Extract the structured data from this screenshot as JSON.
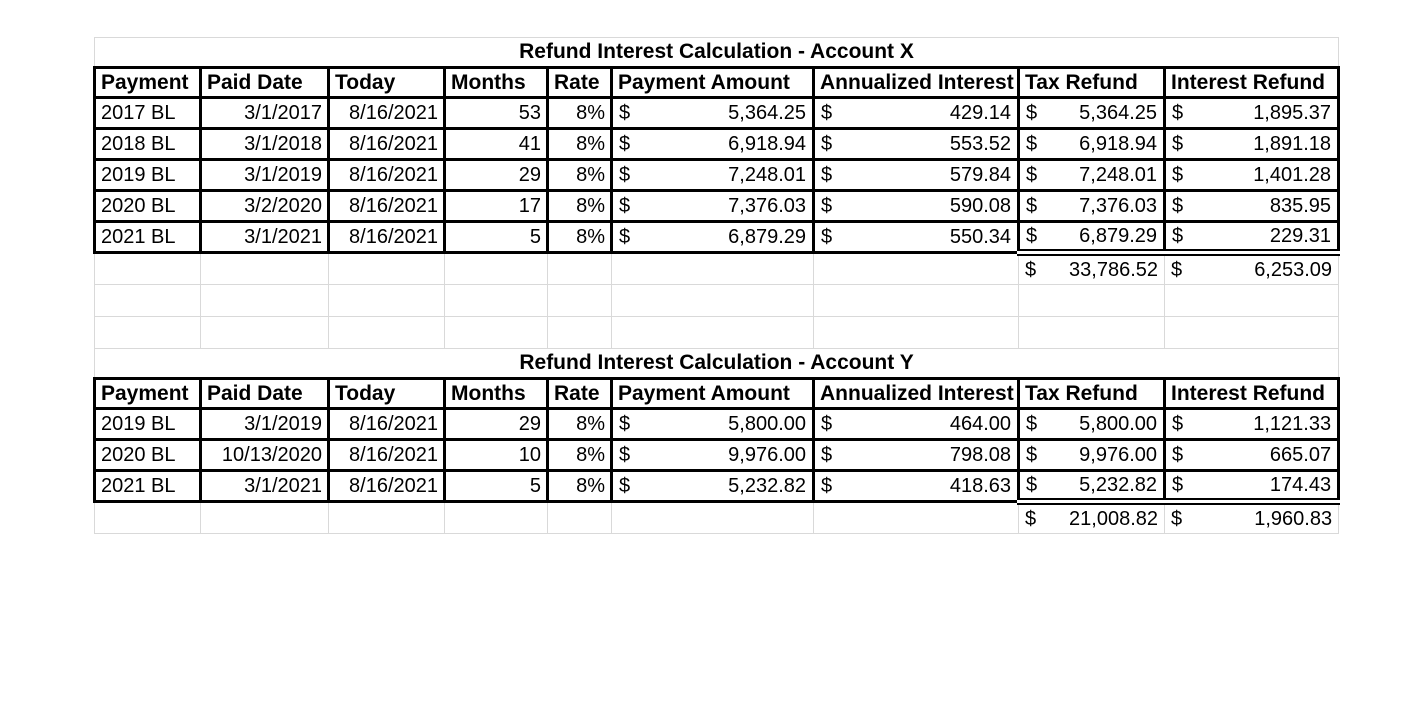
{
  "currency": "$",
  "styles": {
    "grid_line_color": "#d9d9d9",
    "table_border_color": "#000000",
    "text_color": "#000000",
    "background_color": "#ffffff"
  },
  "columns": [
    {
      "key": "payment",
      "type": "text"
    },
    {
      "key": "paid_date",
      "type": "right"
    },
    {
      "key": "today",
      "type": "right"
    },
    {
      "key": "months",
      "type": "right"
    },
    {
      "key": "rate",
      "type": "right"
    },
    {
      "key": "payment_amount",
      "type": "money"
    },
    {
      "key": "annualized_interest",
      "type": "money"
    },
    {
      "key": "tax_refund",
      "type": "money"
    },
    {
      "key": "interest_refund",
      "type": "money"
    }
  ],
  "tables": [
    {
      "title": "Refund Interest Calculation - Account X",
      "headers": [
        "Payment",
        "Paid Date",
        "Today",
        "Months",
        "Rate",
        "Payment Amount",
        "Annualized Interest",
        "Tax Refund",
        "Interest Refund"
      ],
      "rows": [
        [
          "2017 BL",
          "3/1/2017",
          "8/16/2021",
          "53",
          "8%",
          "5,364.25",
          "429.14",
          "5,364.25",
          "1,895.37"
        ],
        [
          "2018 BL",
          "3/1/2018",
          "8/16/2021",
          "41",
          "8%",
          "6,918.94",
          "553.52",
          "6,918.94",
          "1,891.18"
        ],
        [
          "2019 BL",
          "3/1/2019",
          "8/16/2021",
          "29",
          "8%",
          "7,248.01",
          "579.84",
          "7,248.01",
          "1,401.28"
        ],
        [
          "2020 BL",
          "3/2/2020",
          "8/16/2021",
          "17",
          "8%",
          "7,376.03",
          "590.08",
          "7,376.03",
          "835.95"
        ],
        [
          "2021 BL",
          "3/1/2021",
          "8/16/2021",
          "5",
          "8%",
          "6,879.29",
          "550.34",
          "6,879.29",
          "229.31"
        ]
      ],
      "totals": {
        "tax_refund": "33,786.52",
        "interest_refund": "6,253.09"
      },
      "empty_rows_after": 2
    },
    {
      "title": "Refund Interest Calculation - Account Y",
      "headers": [
        "Payment",
        "Paid Date",
        "Today",
        "Months",
        "Rate",
        "Payment Amount",
        "Annualized Interest",
        "Tax Refund",
        "Interest Refund"
      ],
      "rows": [
        [
          "2019 BL",
          "3/1/2019",
          "8/16/2021",
          "29",
          "8%",
          "5,800.00",
          "464.00",
          "5,800.00",
          "1,121.33"
        ],
        [
          "2020 BL",
          "10/13/2020",
          "8/16/2021",
          "10",
          "8%",
          "9,976.00",
          "798.08",
          "9,976.00",
          "665.07"
        ],
        [
          "2021 BL",
          "3/1/2021",
          "8/16/2021",
          "5",
          "8%",
          "5,232.82",
          "418.63",
          "5,232.82",
          "174.43"
        ]
      ],
      "totals": {
        "tax_refund": "21,008.82",
        "interest_refund": "1,960.83"
      },
      "empty_rows_after": 0
    }
  ]
}
